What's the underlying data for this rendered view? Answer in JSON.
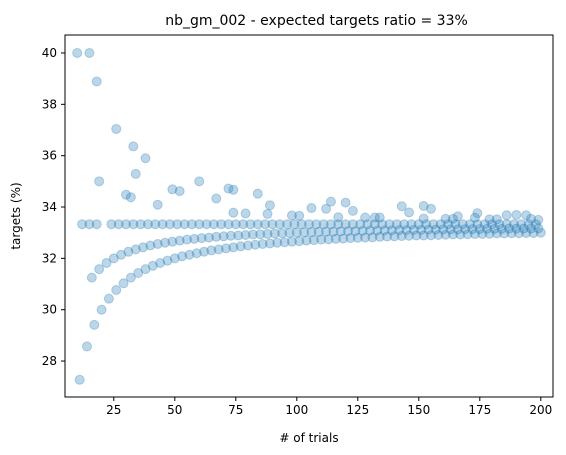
{
  "chart_data": {
    "type": "scatter",
    "title": "nb_gm_002 - expected targets ratio = 33%",
    "xlabel": "# of trials",
    "ylabel": "targets (%)",
    "xlim": [
      5,
      205
    ],
    "ylim": [
      26.6,
      40.7
    ],
    "xticks": [
      25,
      50,
      75,
      100,
      125,
      150,
      175,
      200
    ],
    "yticks": [
      28,
      30,
      32,
      34,
      36,
      38,
      40
    ],
    "grid": false,
    "legend": null,
    "marker_color": "#1f77b4",
    "series": [
      {
        "description": "points at exactly one third",
        "points": [
          [
            12,
            33.33
          ],
          [
            15,
            33.33
          ],
          [
            18,
            33.33
          ],
          [
            24,
            33.33
          ],
          [
            27,
            33.33
          ],
          [
            30,
            33.33
          ],
          [
            33,
            33.33
          ],
          [
            36,
            33.33
          ],
          [
            39,
            33.33
          ],
          [
            42,
            33.33
          ],
          [
            45,
            33.33
          ],
          [
            48,
            33.33
          ],
          [
            51,
            33.33
          ],
          [
            54,
            33.33
          ],
          [
            57,
            33.33
          ],
          [
            60,
            33.33
          ],
          [
            63,
            33.33
          ],
          [
            66,
            33.33
          ],
          [
            69,
            33.33
          ],
          [
            72,
            33.33
          ],
          [
            75,
            33.33
          ],
          [
            78,
            33.33
          ],
          [
            81,
            33.33
          ],
          [
            84,
            33.33
          ],
          [
            87,
            33.33
          ],
          [
            90,
            33.33
          ],
          [
            93,
            33.33
          ],
          [
            96,
            33.33
          ],
          [
            99,
            33.33
          ],
          [
            102,
            33.33
          ],
          [
            105,
            33.33
          ],
          [
            108,
            33.33
          ],
          [
            111,
            33.33
          ],
          [
            114,
            33.33
          ],
          [
            117,
            33.33
          ],
          [
            120,
            33.33
          ],
          [
            123,
            33.33
          ],
          [
            126,
            33.33
          ],
          [
            129,
            33.33
          ],
          [
            132,
            33.33
          ],
          [
            135,
            33.33
          ],
          [
            138,
            33.33
          ],
          [
            141,
            33.33
          ],
          [
            144,
            33.33
          ],
          [
            147,
            33.33
          ],
          [
            150,
            33.33
          ],
          [
            153,
            33.33
          ],
          [
            156,
            33.33
          ],
          [
            159,
            33.33
          ],
          [
            162,
            33.33
          ],
          [
            165,
            33.33
          ],
          [
            168,
            33.33
          ],
          [
            171,
            33.33
          ],
          [
            174,
            33.33
          ],
          [
            177,
            33.33
          ],
          [
            180,
            33.33
          ],
          [
            183,
            33.33
          ],
          [
            186,
            33.33
          ],
          [
            189,
            33.33
          ],
          [
            192,
            33.33
          ],
          [
            195,
            33.33
          ],
          [
            198,
            33.33
          ]
        ]
      },
      {
        "description": "upper-lower converging band",
        "points": [
          [
            11,
            27.27
          ],
          [
            14,
            28.57
          ],
          [
            16,
            31.25
          ],
          [
            17,
            29.41
          ],
          [
            19,
            31.58
          ],
          [
            20,
            30.0
          ],
          [
            22,
            31.82
          ],
          [
            23,
            30.43
          ],
          [
            25,
            32.0
          ],
          [
            26,
            30.77
          ],
          [
            28,
            32.14
          ],
          [
            29,
            31.03
          ],
          [
            31,
            32.26
          ],
          [
            32,
            31.25
          ],
          [
            34,
            32.35
          ],
          [
            35,
            31.43
          ],
          [
            37,
            32.43
          ],
          [
            38,
            31.58
          ],
          [
            40,
            32.5
          ],
          [
            41,
            31.71
          ],
          [
            43,
            32.56
          ],
          [
            44,
            31.82
          ],
          [
            46,
            32.61
          ],
          [
            47,
            31.91
          ],
          [
            49,
            32.65
          ],
          [
            50,
            32.0
          ],
          [
            52,
            32.69
          ],
          [
            53,
            32.08
          ],
          [
            55,
            32.73
          ],
          [
            56,
            32.14
          ],
          [
            58,
            32.76
          ],
          [
            59,
            32.2
          ],
          [
            61,
            32.79
          ],
          [
            62,
            32.26
          ],
          [
            64,
            32.81
          ],
          [
            65,
            32.31
          ],
          [
            67,
            32.84
          ],
          [
            68,
            32.35
          ],
          [
            70,
            32.86
          ],
          [
            71,
            32.39
          ],
          [
            73,
            32.88
          ],
          [
            74,
            32.43
          ],
          [
            76,
            32.89
          ],
          [
            77,
            32.47
          ],
          [
            79,
            32.91
          ],
          [
            80,
            32.5
          ],
          [
            82,
            32.93
          ],
          [
            83,
            32.53
          ],
          [
            85,
            32.94
          ],
          [
            86,
            32.56
          ],
          [
            88,
            32.95
          ],
          [
            89,
            32.58
          ],
          [
            91,
            32.97
          ],
          [
            92,
            32.61
          ],
          [
            94,
            32.98
          ],
          [
            95,
            32.63
          ],
          [
            97,
            32.99
          ],
          [
            98,
            32.65
          ],
          [
            100,
            33.0
          ],
          [
            101,
            32.67
          ],
          [
            103,
            33.01
          ],
          [
            104,
            32.69
          ],
          [
            106,
            33.02
          ],
          [
            107,
            32.71
          ],
          [
            109,
            33.03
          ],
          [
            110,
            32.73
          ],
          [
            112,
            33.04
          ],
          [
            113,
            32.74
          ],
          [
            115,
            33.04
          ],
          [
            116,
            32.76
          ],
          [
            118,
            33.05
          ],
          [
            119,
            32.77
          ],
          [
            121,
            33.06
          ],
          [
            122,
            32.79
          ],
          [
            124,
            33.06
          ],
          [
            125,
            32.8
          ],
          [
            127,
            33.07
          ],
          [
            128,
            32.81
          ],
          [
            130,
            33.08
          ],
          [
            131,
            32.82
          ],
          [
            133,
            33.08
          ],
          [
            134,
            32.84
          ],
          [
            136,
            33.09
          ],
          [
            137,
            32.85
          ],
          [
            139,
            33.09
          ],
          [
            140,
            32.86
          ],
          [
            142,
            33.1
          ],
          [
            143,
            32.87
          ],
          [
            145,
            33.1
          ],
          [
            146,
            32.88
          ],
          [
            148,
            33.11
          ],
          [
            149,
            32.89
          ],
          [
            151,
            33.11
          ],
          [
            152,
            32.89
          ],
          [
            154,
            33.12
          ],
          [
            155,
            32.9
          ],
          [
            157,
            33.12
          ],
          [
            158,
            32.91
          ],
          [
            160,
            33.13
          ],
          [
            161,
            32.92
          ],
          [
            163,
            33.13
          ],
          [
            164,
            32.93
          ],
          [
            166,
            33.13
          ],
          [
            167,
            32.93
          ],
          [
            169,
            33.14
          ],
          [
            170,
            32.94
          ],
          [
            172,
            33.14
          ],
          [
            173,
            32.95
          ],
          [
            175,
            33.14
          ],
          [
            176,
            32.95
          ],
          [
            178,
            33.15
          ],
          [
            179,
            32.96
          ],
          [
            181,
            33.15
          ],
          [
            182,
            32.97
          ],
          [
            184,
            33.15
          ],
          [
            185,
            32.97
          ],
          [
            187,
            33.16
          ],
          [
            188,
            32.98
          ],
          [
            190,
            33.16
          ],
          [
            191,
            32.98
          ],
          [
            193,
            33.16
          ],
          [
            194,
            32.99
          ],
          [
            196,
            33.16
          ],
          [
            197,
            32.99
          ],
          [
            199,
            33.17
          ],
          [
            200,
            33.0
          ]
        ]
      },
      {
        "description": "outlier points above one third",
        "points": [
          [
            10,
            40.0
          ],
          [
            15,
            40.0
          ],
          [
            18,
            38.89
          ],
          [
            19,
            35.0
          ],
          [
            26,
            37.04
          ],
          [
            30,
            34.48
          ],
          [
            32,
            34.38
          ],
          [
            33,
            36.36
          ],
          [
            34,
            35.29
          ],
          [
            38,
            35.9
          ],
          [
            43,
            34.09
          ],
          [
            49,
            34.69
          ],
          [
            52,
            34.62
          ],
          [
            60,
            35.0
          ],
          [
            67,
            34.33
          ],
          [
            72,
            34.72
          ],
          [
            74,
            34.67
          ],
          [
            74,
            33.78
          ],
          [
            79,
            33.75
          ],
          [
            84,
            34.52
          ],
          [
            88,
            33.73
          ],
          [
            89,
            34.07
          ],
          [
            98,
            33.67
          ],
          [
            101,
            33.66
          ],
          [
            106,
            33.96
          ],
          [
            112,
            33.93
          ],
          [
            114,
            34.21
          ],
          [
            117,
            33.6
          ],
          [
            120,
            34.17
          ],
          [
            123,
            33.85
          ],
          [
            128,
            33.59
          ],
          [
            132,
            33.59
          ],
          [
            134,
            33.59
          ],
          [
            143,
            34.03
          ],
          [
            146,
            33.79
          ],
          [
            152,
            33.55
          ],
          [
            152,
            34.04
          ],
          [
            155,
            33.93
          ],
          [
            161,
            33.54
          ],
          [
            164,
            33.54
          ],
          [
            166,
            33.64
          ],
          [
            173,
            33.58
          ],
          [
            174,
            33.76
          ],
          [
            179,
            33.52
          ],
          [
            182,
            33.52
          ],
          [
            186,
            33.68
          ],
          [
            190,
            33.69
          ],
          [
            194,
            33.68
          ],
          [
            196,
            33.54
          ],
          [
            199,
            33.5
          ]
        ]
      }
    ]
  }
}
